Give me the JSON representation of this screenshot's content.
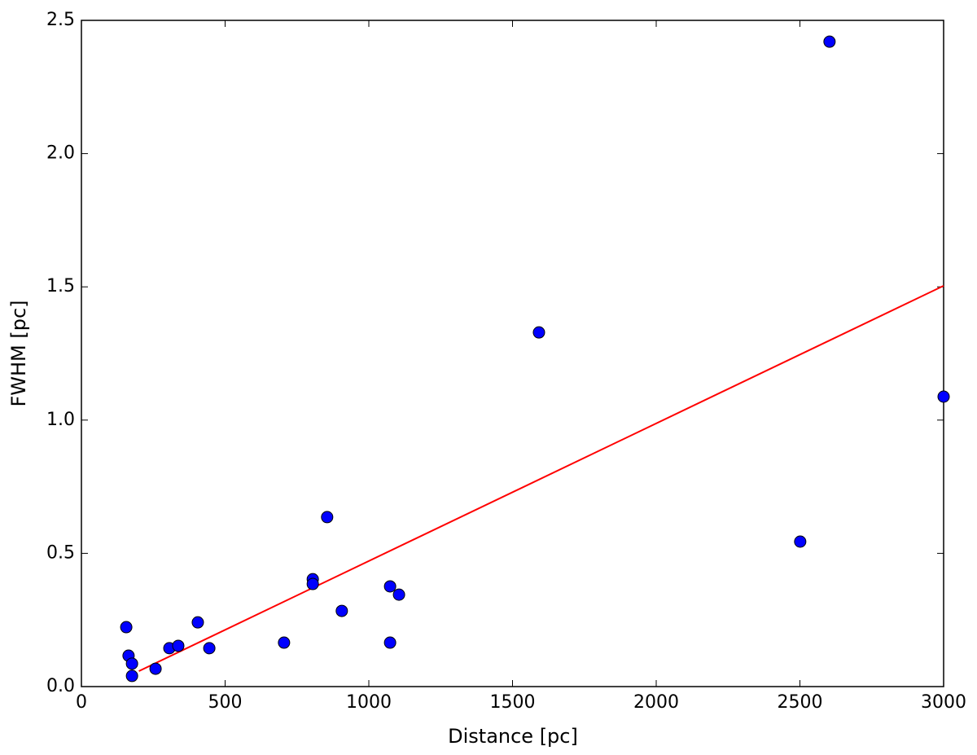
{
  "chart_data": {
    "type": "scatter",
    "x_label": "Distance [pc]",
    "y_label": "FWHM [pc]",
    "xlim": [
      0,
      3000
    ],
    "ylim": [
      0,
      2.5
    ],
    "xticks": [
      0,
      500,
      1000,
      1500,
      2000,
      2500,
      3000
    ],
    "yticks": [
      {
        "value": 0,
        "label": "0.0"
      },
      0.5,
      {
        "value": 1,
        "label": "1.0"
      },
      1.5,
      {
        "value": 2,
        "label": "2.0"
      },
      2.5
    ],
    "grid": false,
    "series": [
      {
        "type": "scatter",
        "color": "#0000ff",
        "x": [
          156,
          164,
          176,
          176,
          258,
          306,
          337,
          405,
          445,
          705,
          805,
          805,
          855,
          906,
          1074,
          1074,
          1105,
          1592,
          2501,
          2603,
          3000
        ],
        "values": [
          0.223,
          0.116,
          0.086,
          0.04,
          0.067,
          0.144,
          0.153,
          0.241,
          0.144,
          0.165,
          0.403,
          0.385,
          0.636,
          0.284,
          0.376,
          0.165,
          0.345,
          1.329,
          0.544,
          2.42,
          1.088
        ]
      },
      {
        "type": "line",
        "color": "#ff0000",
        "x": [
          200,
          3000
        ],
        "values": [
          0.058,
          1.504
        ]
      }
    ]
  }
}
